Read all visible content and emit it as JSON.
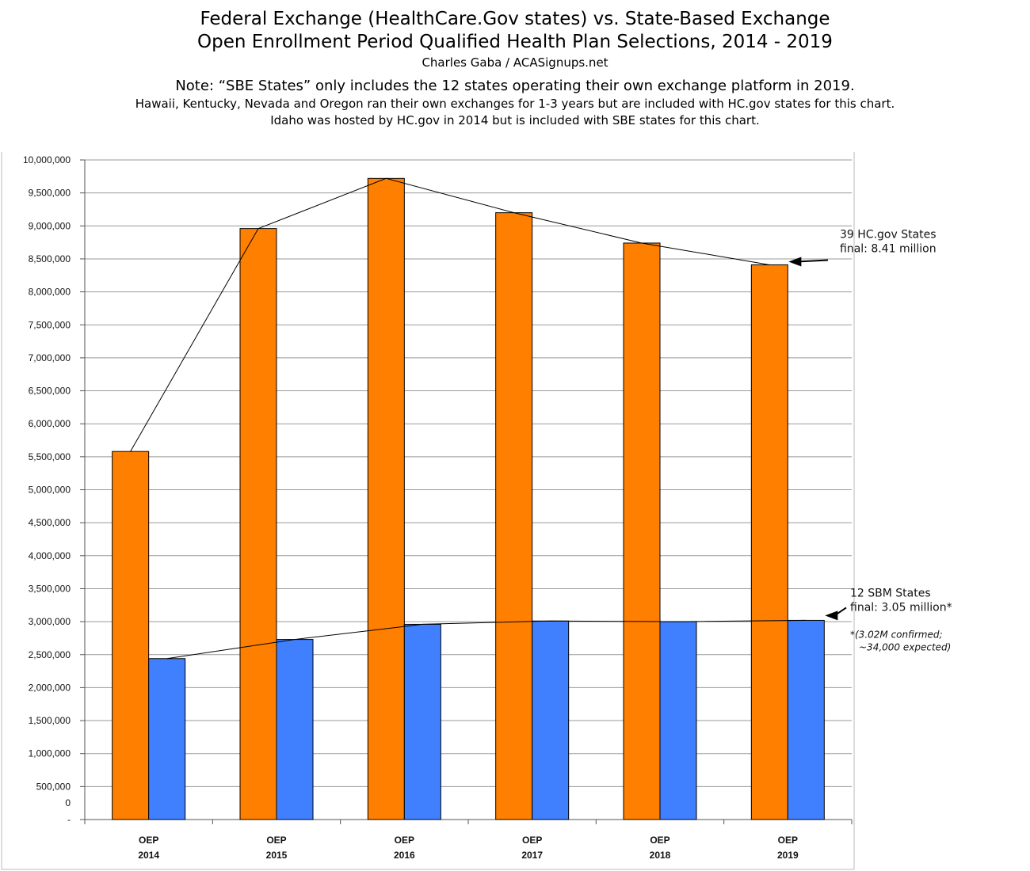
{
  "header": {
    "title_line1": "Federal Exchange (HealthCare.Gov states) vs. State-Based Exchange",
    "title_line2": "Open Enrollment Period Qualified Health Plan Selections, 2014 - 2019",
    "byline": "Charles Gaba / ACASignups.net",
    "note_line1": "Note: “SBE States” only includes the 12 states operating their own exchange platform in 2019.",
    "note_line2": "Hawaii, Kentucky, Nevada and Oregon ran their own exchanges for 1-3 years but are included with HC.gov states for this chart.",
    "note_line3": "Idaho was hosted by HC.gov in 2014 but is included with SBE states for this chart."
  },
  "colors": {
    "federal": "#FF7F00",
    "sbe": "#4080FF",
    "gridline": "#999999",
    "axis": "#555555"
  },
  "chart_data": {
    "type": "bar",
    "categories": [
      [
        "OEP",
        "2014"
      ],
      [
        "OEP",
        "2015"
      ],
      [
        "OEP",
        "2016"
      ],
      [
        "OEP",
        "2017"
      ],
      [
        "OEP",
        "2018"
      ],
      [
        "OEP",
        "2019"
      ]
    ],
    "series": [
      {
        "values": [
          5580000,
          8960000,
          9720000,
          9200000,
          8740000,
          8410000
        ],
        "trendline": true
      },
      {
        "values": [
          2440000,
          2730000,
          2960000,
          3010000,
          3000000,
          3020000
        ],
        "trendline": true
      }
    ],
    "ylim": [
      0,
      10000000
    ],
    "y_ticks": [
      "-",
      "500,000",
      "1,000,000",
      "1,500,000",
      "2,000,000",
      "2,500,000",
      "3,000,000",
      "3,500,000",
      "4,000,000",
      "4,500,000",
      "5,000,000",
      "5,500,000",
      "6,000,000",
      "6,500,000",
      "7,000,000",
      "7,500,000",
      "8,000,000",
      "8,500,000",
      "9,000,000",
      "9,500,000",
      "10,000,000"
    ],
    "y_zero_label": "0",
    "grid": true,
    "annotations": [
      {
        "series": 0,
        "lines": [
          "39 HC.gov States",
          "final: 8.41 million"
        ]
      },
      {
        "series": 1,
        "lines": [
          "12 SBM States",
          "final: 3.05 million*"
        ]
      }
    ],
    "footnote": [
      "*(3.02M confirmed;",
      "~34,000 expected)"
    ]
  }
}
